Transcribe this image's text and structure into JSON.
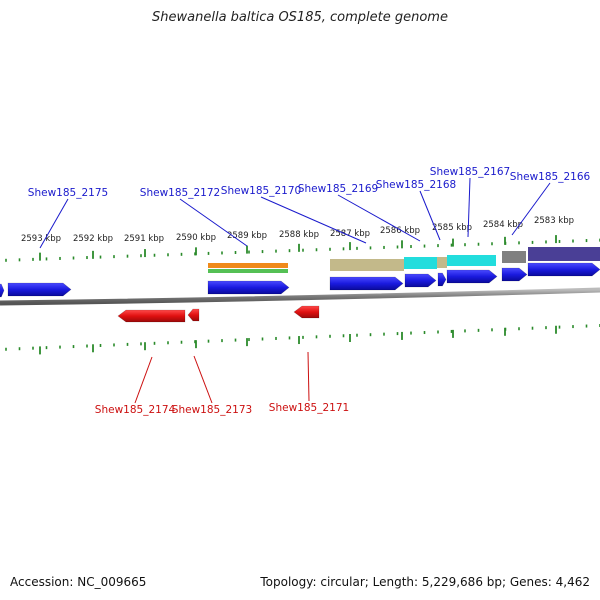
{
  "title": "Shewanella baltica OS185, complete genome",
  "footer": {
    "accession": "Accession: NC_009665",
    "summary": "Topology: circular; Length: 5,229,686 bp; Genes: 4,462"
  },
  "colors": {
    "plus_gene": "#1a1adf",
    "minus_gene": "#e01010",
    "plus_label": "#1a1acc",
    "minus_label": "#cc1010",
    "tick": "#2a8a2a",
    "backbone": "#8a8a8a",
    "scale_text": "#222222"
  },
  "scale_labels": [
    {
      "text": "2593 kbp"
    },
    {
      "text": "2592 kbp"
    },
    {
      "text": "2591 kbp"
    },
    {
      "text": "2590 kbp"
    },
    {
      "text": "2589 kbp"
    },
    {
      "text": "2588 kbp"
    },
    {
      "text": "2587 kbp"
    },
    {
      "text": "2586 kbp"
    },
    {
      "text": "2585 kbp"
    },
    {
      "text": "2584 kbp"
    },
    {
      "text": "2583 kbp"
    }
  ],
  "plus_genes": [
    {
      "id": "Shew185_2175"
    },
    {
      "id": "Shew185_2172"
    },
    {
      "id": "Shew185_2170"
    },
    {
      "id": "Shew185_2169"
    },
    {
      "id": "Shew185_2168"
    },
    {
      "id": "Shew185_2167"
    },
    {
      "id": "Shew185_2166"
    }
  ],
  "minus_genes": [
    {
      "id": "Shew185_2174"
    },
    {
      "id": "Shew185_2173"
    },
    {
      "id": "Shew185_2171"
    }
  ],
  "feature_colors": [
    "#f08a1a",
    "#55c055",
    "#c3b98a",
    "#22dddd",
    "#808080",
    "#4a3f96"
  ]
}
